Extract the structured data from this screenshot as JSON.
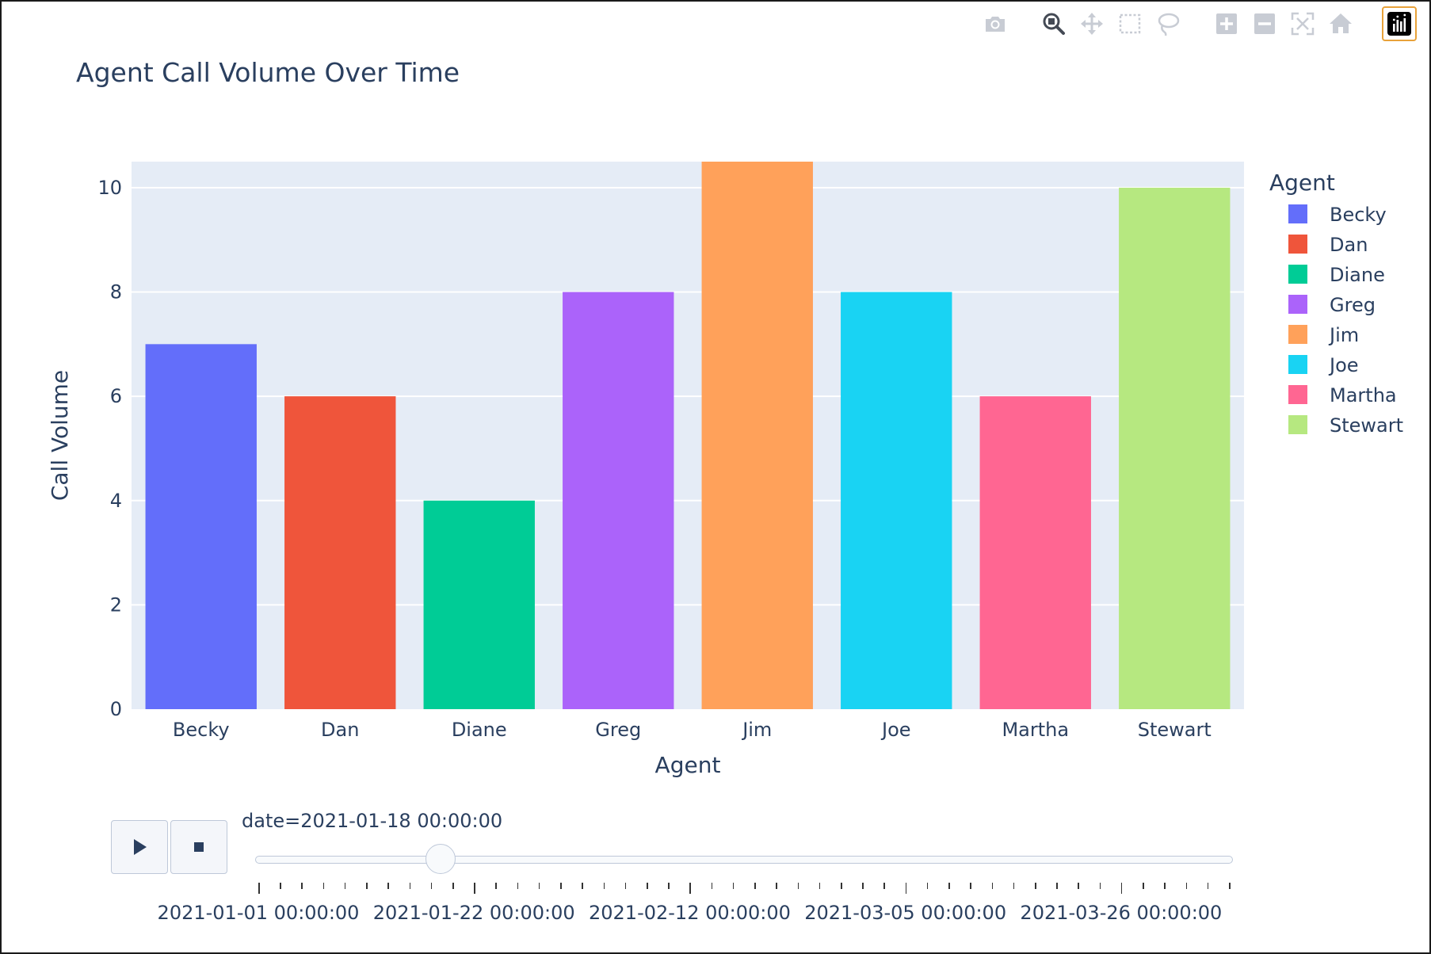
{
  "chart_data": {
    "type": "bar",
    "title": "Agent Call Volume Over Time",
    "xlabel": "Agent",
    "ylabel": "Call Volume",
    "ylim": [
      0,
      10.5
    ],
    "y_ticks": [
      0,
      2,
      4,
      6,
      8,
      10
    ],
    "categories": [
      "Becky",
      "Dan",
      "Diane",
      "Greg",
      "Jim",
      "Joe",
      "Martha",
      "Stewart"
    ],
    "values": [
      7,
      6,
      4,
      8,
      11,
      8,
      6,
      10
    ],
    "colors": [
      "#636efa",
      "#EF553B",
      "#00cc96",
      "#ab63fa",
      "#FFA15A",
      "#19d3f3",
      "#FF6692",
      "#B6E880"
    ],
    "legend": {
      "title": "Agent",
      "placement": "right",
      "items": [
        "Becky",
        "Dan",
        "Diane",
        "Greg",
        "Jim",
        "Joe",
        "Martha",
        "Stewart"
      ]
    },
    "grid": true,
    "plot_background": "#e5ecf6"
  },
  "slider": {
    "current_label": "date=2021-01-18 00:00:00",
    "current_fraction": 0.19,
    "step_labels": [
      "2021-01-01 00:00:00",
      "2021-01-22 00:00:00",
      "2021-02-12 00:00:00",
      "2021-03-05 00:00:00",
      "2021-03-26 00:00:00"
    ],
    "minor_tick_count": 46
  },
  "modebar": {
    "icons": [
      "camera-icon",
      "zoom-icon",
      "pan-icon",
      "box-select-icon",
      "lasso-icon",
      "zoom-in-icon",
      "zoom-out-icon",
      "autoscale-icon",
      "home-icon",
      "plotly-logo-icon"
    ]
  },
  "controls": {
    "play_icon": "play-icon",
    "stop_icon": "stop-icon"
  }
}
